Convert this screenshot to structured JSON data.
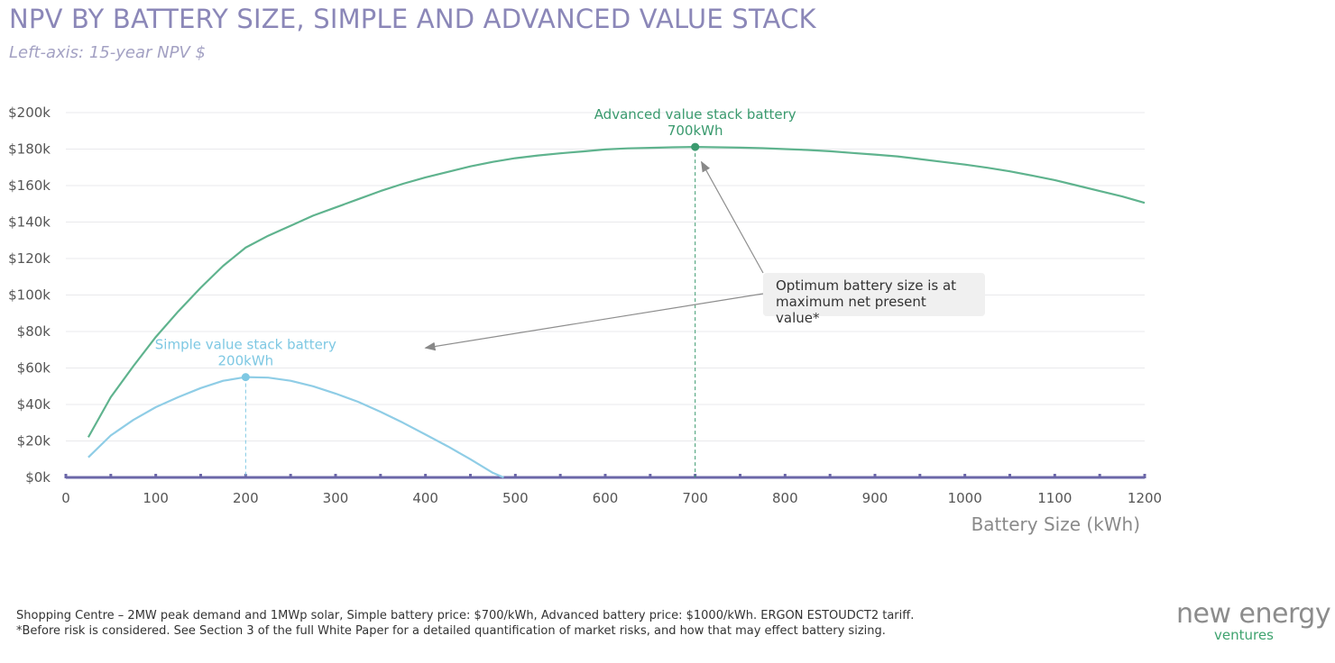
{
  "header": {
    "title": "NPV BY BATTERY SIZE, SIMPLE AND ADVANCED VALUE STACK",
    "subtitle": "Left-axis: 15-year NPV $"
  },
  "chart_data": {
    "type": "line",
    "xlabel": "Battery Size (kWh)",
    "xlim": [
      0,
      1200
    ],
    "ylim": [
      0,
      200000
    ],
    "x_ticks": [
      0,
      100,
      200,
      300,
      400,
      500,
      600,
      700,
      800,
      900,
      1000,
      1100,
      1200
    ],
    "y_ticks": [
      {
        "value": 0,
        "label": "$0k"
      },
      {
        "value": 20000,
        "label": "$20k"
      },
      {
        "value": 40000,
        "label": "$40k"
      },
      {
        "value": 60000,
        "label": "$60k"
      },
      {
        "value": 80000,
        "label": "$80k"
      },
      {
        "value": 100000,
        "label": "$100k"
      },
      {
        "value": 120000,
        "label": "$120k"
      },
      {
        "value": 140000,
        "label": "$140k"
      },
      {
        "value": 160000,
        "label": "$160k"
      },
      {
        "value": 180000,
        "label": "$180k"
      },
      {
        "value": 200000,
        "label": "$200k"
      }
    ],
    "grid": true,
    "series": [
      {
        "color": "#5fb38e",
        "x": [
          25,
          50,
          75,
          100,
          125,
          150,
          175,
          200,
          225,
          250,
          275,
          300,
          325,
          350,
          375,
          400,
          425,
          450,
          475,
          500,
          525,
          550,
          575,
          600,
          625,
          650,
          675,
          700,
          725,
          750,
          775,
          800,
          825,
          850,
          875,
          900,
          925,
          950,
          975,
          1000,
          1025,
          1050,
          1075,
          1100,
          1125,
          1150,
          1175,
          1200
        ],
        "values": [
          22000,
          44000,
          61000,
          77000,
          91000,
          104000,
          116000,
          126000,
          132500,
          138000,
          143500,
          148000,
          152500,
          157000,
          161000,
          164500,
          167500,
          170500,
          173000,
          175000,
          176500,
          177700,
          178700,
          179800,
          180400,
          180700,
          181000,
          181200,
          181000,
          180800,
          180500,
          180000,
          179500,
          178800,
          177900,
          177000,
          176000,
          174500,
          173000,
          171500,
          169800,
          167800,
          165500,
          163000,
          160000,
          157000,
          154000,
          150500
        ]
      },
      {
        "color": "#8fcde6",
        "x": [
          25,
          50,
          75,
          100,
          125,
          150,
          175,
          200,
          225,
          250,
          275,
          300,
          325,
          350,
          375,
          400,
          425,
          450,
          475,
          487
        ],
        "values": [
          11000,
          23000,
          31500,
          38500,
          44000,
          49000,
          53000,
          55000,
          54700,
          53000,
          50000,
          46000,
          41500,
          36000,
          30000,
          23500,
          17000,
          10000,
          2500,
          0
        ]
      }
    ],
    "optima": [
      {
        "x": 700,
        "y": 181200,
        "label_line1": "Advanced value stack battery",
        "label_line2": "700kWh",
        "color": "#3a9a6e"
      },
      {
        "x": 200,
        "y": 55000,
        "label_line1": "Simple value stack battery",
        "label_line2": "200kWh",
        "color": "#7ec8e3"
      }
    ],
    "annotation": {
      "line1": "Optimum battery size is at",
      "line2": "maximum net present value*",
      "arrow_targets": [
        {
          "x": 707,
          "y": 173000
        },
        {
          "x": 400,
          "y": 71000
        }
      ]
    }
  },
  "footer": {
    "note1": "Shopping Centre – 2MW peak demand and 1MWp solar, Simple battery price: $700/kWh, Advanced battery price: $1000/kWh. ERGON ESTOUDCT2 tariff.",
    "note2": "*Before risk is considered. See Section 3 of the full White Paper for a detailed quantification of market risks, and how that may effect battery sizing.",
    "logo_top": "new energy",
    "logo_bottom": "ventures"
  }
}
